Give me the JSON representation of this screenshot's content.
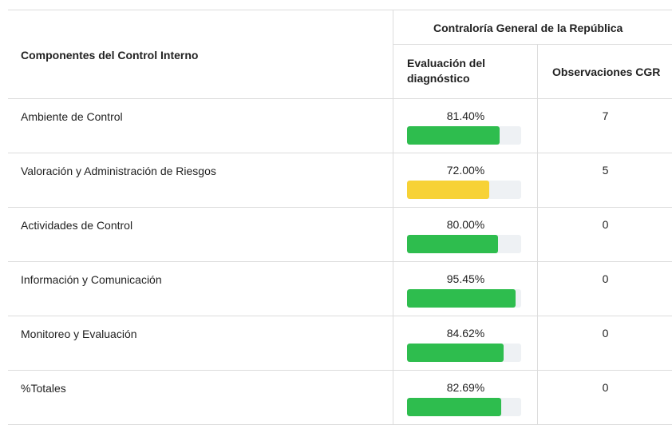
{
  "table": {
    "group_header": "Contraloría General de la República",
    "columns": [
      "Componentes del Control Interno",
      "Evaluación del diagnóstico",
      "Observaciones CGR"
    ],
    "xlim": [
      0,
      100
    ],
    "rows": [
      {
        "name": "Ambiente de Control",
        "value": 81.4,
        "value_label": "81.40%",
        "bar_color": "#2ebd4e",
        "observations": 7
      },
      {
        "name": "Valoración y Administración de Riesgos",
        "value": 72.0,
        "value_label": "72.00%",
        "bar_color": "#f7d236",
        "observations": 5
      },
      {
        "name": "Actividades de Control",
        "value": 80.0,
        "value_label": "80.00%",
        "bar_color": "#2ebd4e",
        "observations": 0
      },
      {
        "name": "Información y Comunicación",
        "value": 95.45,
        "value_label": "95.45%",
        "bar_color": "#2ebd4e",
        "observations": 0
      },
      {
        "name": "Monitoreo y Evaluación",
        "value": 84.62,
        "value_label": "84.62%",
        "bar_color": "#2ebd4e",
        "observations": 0
      },
      {
        "name": "%Totales",
        "value": 82.69,
        "value_label": "82.69%",
        "bar_color": "#2ebd4e",
        "observations": 0
      }
    ]
  }
}
